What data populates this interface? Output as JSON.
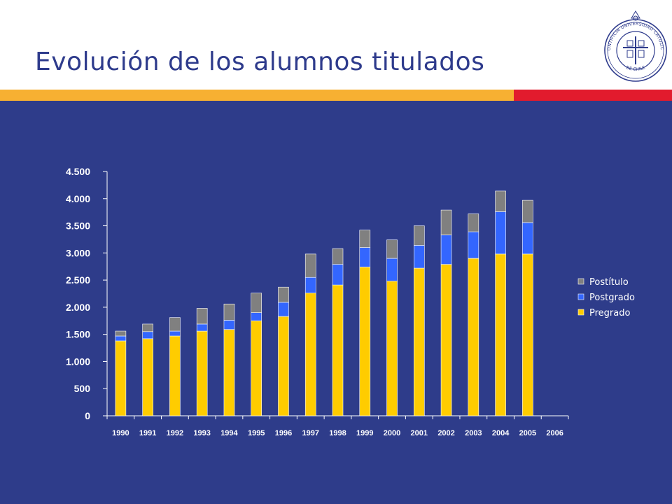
{
  "slide": {
    "title": "Evolución de los alumnos titulados",
    "colors": {
      "title": "#2E3B8C",
      "background_panel": "#2E3C8A",
      "stripe_orange": "#F7B032",
      "stripe_red": "#E21B2D"
    }
  },
  "logo": {
    "name": "university-seal-icon",
    "text": "PONTIFICIA UNIVERSIDAD CATOLICA DE CHILE"
  },
  "chart_data": {
    "type": "bar",
    "stacked": true,
    "title": "",
    "xlabel": "",
    "ylabel": "",
    "categories": [
      "1990",
      "1991",
      "1992",
      "1993",
      "1994",
      "1995",
      "1996",
      "1997",
      "1998",
      "1999",
      "2000",
      "2001",
      "2002",
      "2003",
      "2004",
      "2005",
      "2006"
    ],
    "ylim": [
      0,
      4500
    ],
    "yticks": [
      0,
      500,
      1000,
      1500,
      2000,
      2500,
      3000,
      3500,
      4000,
      4500
    ],
    "ytick_labels": [
      "0",
      "500",
      "1.000",
      "1.500",
      "2.000",
      "2.500",
      "3.000",
      "3.500",
      "4.000",
      "4.500"
    ],
    "grid": false,
    "legend_position": "right",
    "series": [
      {
        "name": "Pregrado",
        "color": "#FFCC00",
        "values": [
          1380,
          1420,
          1470,
          1560,
          1590,
          1750,
          1830,
          2260,
          2410,
          2740,
          2480,
          2720,
          2790,
          2900,
          2980,
          2980,
          null
        ]
      },
      {
        "name": "Postgrado",
        "color": "#3366FF",
        "values": [
          90,
          130,
          90,
          130,
          170,
          150,
          260,
          290,
          380,
          360,
          420,
          420,
          540,
          490,
          780,
          580,
          null
        ]
      },
      {
        "name": "Postítulo",
        "color": "#808080",
        "values": [
          90,
          140,
          250,
          290,
          300,
          360,
          280,
          430,
          290,
          320,
          340,
          360,
          460,
          330,
          380,
          410,
          null
        ]
      }
    ],
    "legend_order": [
      "Postítulo",
      "Postgrado",
      "Pregrado"
    ]
  }
}
